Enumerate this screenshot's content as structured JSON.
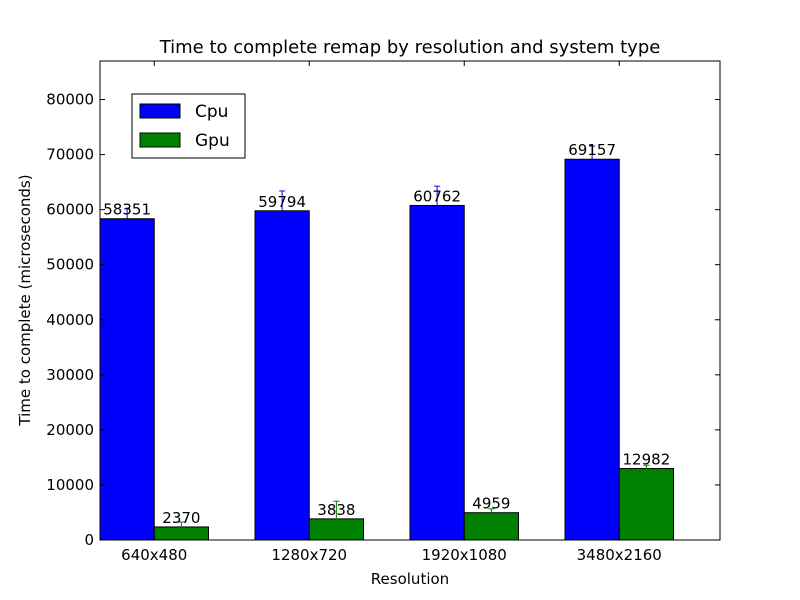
{
  "chart_data": {
    "type": "bar",
    "title": "Time to complete remap by resolution and system type",
    "xlabel": "Resolution",
    "ylabel": "Time to complete (microseconds)",
    "categories": [
      "640x480",
      "1280x720",
      "1920x1080",
      "3480x2160"
    ],
    "ylim": [
      0,
      87000
    ],
    "yticks": [
      0,
      10000,
      20000,
      30000,
      40000,
      50000,
      60000,
      70000,
      80000
    ],
    "legend_position": "upper left",
    "grid": false,
    "series": [
      {
        "name": "Cpu",
        "color": "#0000ff",
        "values": [
          58351,
          59794,
          60762,
          69157
        ],
        "errors": [
          1800,
          3600,
          3500,
          2400
        ]
      },
      {
        "name": "Gpu",
        "color": "#008000",
        "values": [
          2370,
          3838,
          4959,
          12982
        ],
        "errors": [
          900,
          3200,
          700,
          600
        ]
      }
    ]
  }
}
